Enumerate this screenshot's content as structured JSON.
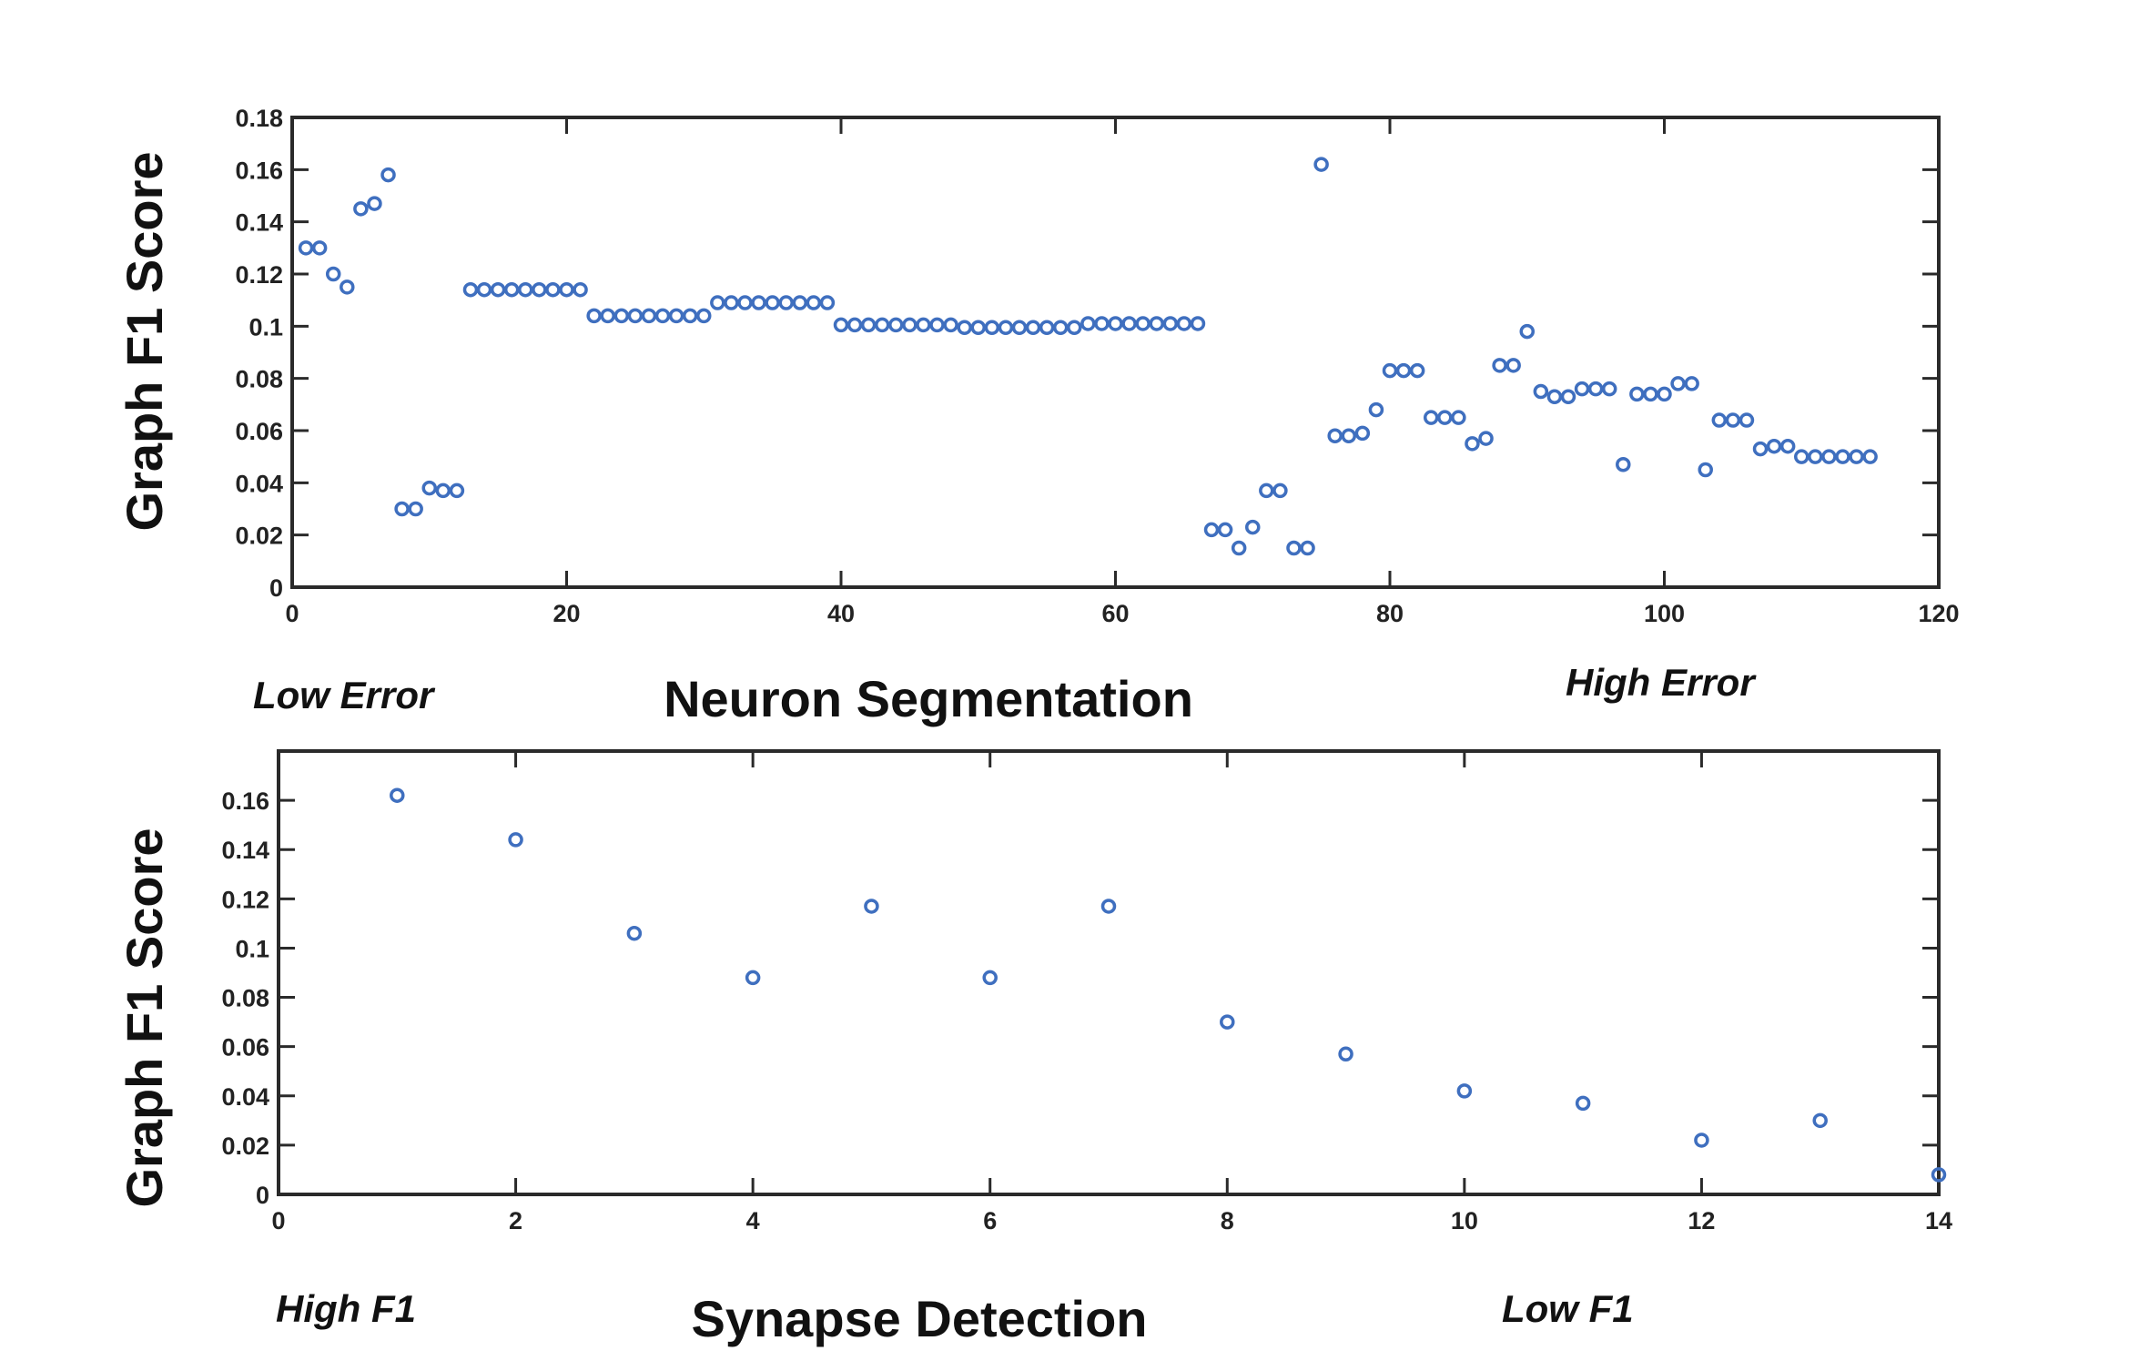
{
  "colors": {
    "marker": "#3f6fbf",
    "axis": "#2a2a2a"
  },
  "chart_data": [
    {
      "type": "scatter",
      "title": "Neuron Segmentation",
      "xlabel": "",
      "ylabel": "Graph F1 Score",
      "xlim": [
        0,
        120
      ],
      "ylim": [
        0,
        0.18
      ],
      "xticks": [
        0,
        20,
        40,
        60,
        80,
        100,
        120
      ],
      "yticks": [
        0,
        0.02,
        0.04,
        0.06,
        0.08,
        0.1,
        0.12,
        0.14,
        0.16,
        0.18
      ],
      "ytick_labels": [
        "0",
        "0.02",
        "0.04",
        "0.06",
        "0.08",
        "0.1",
        "0.12",
        "0.14",
        "0.16",
        "0.18"
      ],
      "annotations": {
        "left": "Low Error",
        "right": "High Error"
      },
      "grid": false,
      "marker": "open-circle",
      "y": [
        0.13,
        0.13,
        0.12,
        0.115,
        0.145,
        0.147,
        0.158,
        0.03,
        0.03,
        0.038,
        0.037,
        0.037,
        0.114,
        0.114,
        0.114,
        0.114,
        0.114,
        0.114,
        0.114,
        0.114,
        0.114,
        0.104,
        0.104,
        0.104,
        0.104,
        0.104,
        0.104,
        0.104,
        0.104,
        0.104,
        0.109,
        0.109,
        0.109,
        0.109,
        0.109,
        0.109,
        0.109,
        0.109,
        0.109,
        0.1005,
        0.1005,
        0.1005,
        0.1005,
        0.1005,
        0.1005,
        0.1005,
        0.1005,
        0.1005,
        0.0995,
        0.0995,
        0.0995,
        0.0995,
        0.0995,
        0.0995,
        0.0995,
        0.0995,
        0.0995,
        0.101,
        0.101,
        0.101,
        0.101,
        0.101,
        0.101,
        0.101,
        0.101,
        0.101,
        0.022,
        0.022,
        0.015,
        0.023,
        0.037,
        0.037,
        0.015,
        0.015,
        0.162,
        0.058,
        0.058,
        0.059,
        0.068,
        0.083,
        0.083,
        0.083,
        0.065,
        0.065,
        0.065,
        0.055,
        0.057,
        0.085,
        0.085,
        0.098,
        0.075,
        0.073,
        0.073,
        0.076,
        0.076,
        0.076,
        0.047,
        0.074,
        0.074,
        0.074,
        0.078,
        0.078,
        0.045,
        0.064,
        0.064,
        0.064,
        0.053,
        0.054,
        0.054,
        0.05,
        0.05,
        0.05,
        0.05,
        0.05,
        0.05
      ]
    },
    {
      "type": "scatter",
      "title": "Synapse Detection",
      "xlabel": "",
      "ylabel": "Graph F1 Score",
      "xlim": [
        0,
        14
      ],
      "ylim": [
        0,
        0.18
      ],
      "xticks": [
        0,
        2,
        4,
        6,
        8,
        10,
        12,
        14
      ],
      "yticks": [
        0,
        0.02,
        0.04,
        0.06,
        0.08,
        0.1,
        0.12,
        0.14,
        0.16
      ],
      "ytick_labels": [
        "0",
        "0.02",
        "0.04",
        "0.06",
        "0.08",
        "0.1",
        "0.12",
        "0.14",
        "0.16"
      ],
      "annotations": {
        "left": "High F1",
        "right": "Low F1"
      },
      "grid": false,
      "marker": "open-circle",
      "y": [
        0.162,
        0.144,
        0.106,
        0.088,
        0.117,
        0.088,
        0.117,
        0.07,
        0.057,
        0.042,
        0.037,
        0.022,
        0.03,
        0.008
      ]
    }
  ]
}
